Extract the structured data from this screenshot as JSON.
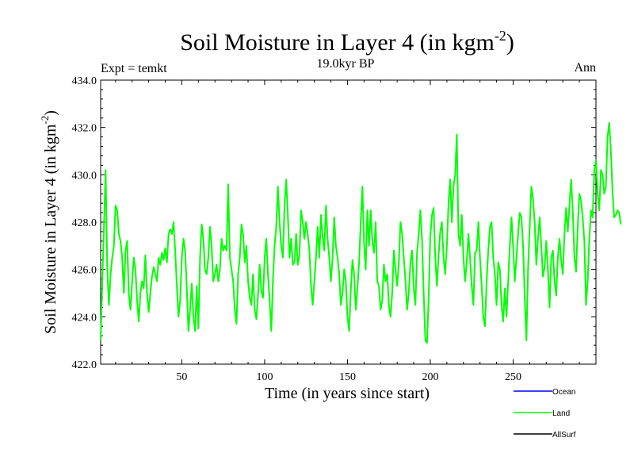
{
  "chart_data": {
    "type": "line",
    "title": "Soil Moisture in Layer 4 (in kgm",
    "title_sup": "-2",
    "title_close": ")",
    "subtitle_left": "Expt = temkt",
    "subtitle_center": "19.0kyr BP",
    "subtitle_right": "Ann",
    "xlabel": "Time (in years since start)",
    "ylabel": "Soil Moisture in Layer 4 (in kgm",
    "ylabel_sup": "-2",
    "ylabel_close": ")",
    "xlim": [
      1,
      300
    ],
    "ylim": [
      422.0,
      434.0
    ],
    "x_ticks": [
      50,
      100,
      150,
      200,
      250
    ],
    "x_tick_labels": [
      "50",
      "100",
      "150",
      "200",
      "250"
    ],
    "y_ticks": [
      422,
      424,
      426,
      428,
      430,
      432,
      434
    ],
    "y_tick_labels": [
      "422.0",
      "424.0",
      "426.0",
      "428.0",
      "430.0",
      "432.0",
      "434.0"
    ],
    "legend": [
      {
        "name": "Ocean",
        "color": "#0000ff"
      },
      {
        "name": "Land",
        "color": "#00ff00"
      },
      {
        "name": "AllSurf",
        "color": "#000000"
      }
    ],
    "series": [
      {
        "name": "Land",
        "color": "#00ff00",
        "x_start": 1,
        "x_step": 1,
        "values": [
          423.0,
          425.5,
          427.8,
          430.2,
          426.0,
          424.5,
          425.8,
          426.5,
          427.0,
          428.7,
          428.5,
          427.5,
          427.2,
          426.5,
          425.0,
          426.8,
          427.2,
          425.0,
          424.3,
          425.5,
          426.5,
          426.0,
          424.7,
          423.8,
          425.0,
          425.5,
          425.2,
          426.6,
          425.0,
          424.2,
          425.0,
          425.7,
          426.1,
          425.8,
          425.5,
          426.5,
          426.2,
          426.7,
          426.4,
          426.9,
          426.3,
          427.5,
          427.7,
          427.5,
          428.0,
          426.8,
          425.3,
          424.0,
          424.7,
          426.5,
          427.3,
          426.8,
          425.2,
          423.4,
          424.3,
          425.4,
          424.0,
          423.4,
          425.3,
          423.5,
          426.5,
          427.9,
          427.3,
          426.0,
          425.8,
          426.5,
          427.8,
          427.0,
          425.5,
          425.8,
          426.2,
          425.5,
          426.0,
          427.3,
          426.8,
          427.0,
          426.8,
          429.6,
          426.5,
          426.0,
          425.5,
          424.3,
          423.7,
          425.8,
          426.5,
          427.9,
          427.5,
          426.3,
          427.0,
          425.5,
          424.8,
          424.5,
          425.8,
          424.3,
          423.9,
          424.9,
          426.2,
          425.1,
          424.8,
          426.5,
          427.3,
          425.8,
          424.7,
          423.4,
          425.5,
          427.0,
          427.8,
          429.5,
          428.0,
          427.0,
          426.5,
          428.7,
          429.8,
          428.3,
          426.5,
          427.3,
          426.2,
          426.3,
          427.5,
          426.2,
          426.6,
          428.5,
          428.0,
          427.3,
          428.0,
          427.5,
          426.8,
          425.3,
          424.5,
          425.5,
          426.5,
          427.8,
          426.5,
          428.3,
          427.4,
          426.8,
          428.7,
          427.3,
          426.5,
          425.5,
          426.5,
          428.2,
          427.0,
          426.5,
          425.8,
          424.5,
          425.0,
          426.0,
          425.5,
          424.0,
          423.4,
          425.1,
          426.4,
          425.8,
          424.3,
          425.2,
          426.3,
          428.0,
          429.5,
          427.1,
          426.0,
          428.5,
          427.0,
          428.5,
          427.2,
          426.7,
          428.0,
          425.5,
          425.3,
          424.3,
          424.7,
          426.2,
          425.5,
          425.8,
          424.5,
          424.0,
          425.0,
          426.8,
          426.0,
          425.3,
          426.3,
          428.0,
          427.5,
          426.5,
          425.5,
          424.3,
          425.0,
          426.3,
          426.8,
          425.2,
          424.5,
          426.7,
          427.5,
          428.5,
          427.3,
          425.0,
          423.0,
          422.9,
          424.8,
          427.4,
          428.3,
          428.6,
          426.5,
          425.3,
          426.6,
          427.6,
          428.0,
          426.5,
          425.8,
          427.0,
          428.8,
          429.8,
          428.0,
          429.5,
          430.0,
          431.7,
          427.5,
          427.0,
          428.3,
          426.5,
          425.5,
          426.3,
          427.5,
          426.5,
          425.3,
          424.5,
          426.7,
          426.8,
          428.0,
          426.5,
          425.3,
          424.0,
          423.6,
          425.5,
          426.8,
          427.8,
          428.0,
          426.5,
          425.8,
          424.5,
          426.3,
          426.0,
          424.5,
          423.8,
          425.2,
          424.0,
          425.5,
          427.0,
          428.2,
          427.0,
          425.5,
          426.5,
          427.5,
          428.4,
          428.2,
          427.0,
          424.8,
          423.0,
          426.0,
          427.8,
          429.5,
          429.0,
          428.0,
          426.2,
          427.3,
          428.2,
          427.0,
          425.7,
          426.1,
          427.2,
          426.0,
          424.4,
          426.5,
          426.8,
          425.5,
          424.9,
          426.5,
          427.3,
          426.4,
          425.8,
          427.5,
          428.6,
          427.6,
          428.7,
          429.8,
          428.5,
          426.5,
          425.9,
          427.8,
          429.2,
          428.9,
          428.2,
          427.2,
          424.5,
          425.5,
          427.3,
          428.5,
          428.2,
          430.2,
          430.6,
          429.2,
          428.5,
          430.2,
          430.0,
          429.2,
          429.5,
          431.6,
          432.2,
          431.0,
          429.3,
          428.2,
          428.3,
          428.5,
          428.4,
          427.9
        ]
      }
    ]
  }
}
